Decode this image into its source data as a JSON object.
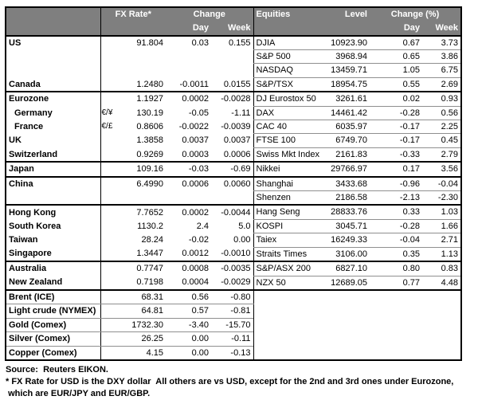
{
  "table": {
    "header": {
      "fx_rate": "FX Rate*",
      "change": "Change",
      "day": "Day",
      "week": "Week",
      "equities": "Equities",
      "level": "Level",
      "change_pct": "Change (%)",
      "day_right": "Day",
      "week_right": "Week"
    },
    "commodity_start_index": 18,
    "rows": [
      {
        "name": "US",
        "pair": "",
        "indent": false,
        "rate": "91.804",
        "day": "0.03",
        "week": "0.155",
        "equity": "DJIA",
        "level": "10923.90",
        "eq_day": "0.67",
        "eq_week": "3.73",
        "sep_after": false
      },
      {
        "name": "",
        "pair": "",
        "indent": false,
        "rate": "",
        "day": "",
        "week": "",
        "equity": "S&P 500",
        "level": "3968.94",
        "eq_day": "0.65",
        "eq_week": "3.86",
        "sep_after": false
      },
      {
        "name": "",
        "pair": "",
        "indent": false,
        "rate": "",
        "day": "",
        "week": "",
        "equity": "NASDAQ",
        "level": "13459.71",
        "eq_day": "1.05",
        "eq_week": "6.75",
        "sep_after": false
      },
      {
        "name": "Canada",
        "pair": "",
        "indent": false,
        "rate": "1.2480",
        "day": "-0.0011",
        "week": "0.0155",
        "equity": "S&P/TSX",
        "level": "18954.75",
        "eq_day": "0.55",
        "eq_week": "2.69",
        "sep_after": true
      },
      {
        "name": "Eurozone",
        "pair": "",
        "indent": false,
        "rate": "1.1927",
        "day": "0.0002",
        "week": "-0.0028",
        "equity": "DJ Eurostox 50",
        "level": "3261.61",
        "eq_day": "0.02",
        "eq_week": "0.93",
        "sep_after": false
      },
      {
        "name": "Germany",
        "pair": "€/¥",
        "indent": true,
        "rate": "130.19",
        "day": "-0.05",
        "week": "-1.11",
        "equity": "DAX",
        "level": "14461.42",
        "eq_day": "-0.28",
        "eq_week": "0.56",
        "sep_after": false
      },
      {
        "name": "France",
        "pair": "€/£",
        "indent": true,
        "rate": "0.8606",
        "day": "-0.0022",
        "week": "-0.0039",
        "equity": "CAC 40",
        "level": "6035.97",
        "eq_day": "-0.17",
        "eq_week": "2.25",
        "sep_after": false
      },
      {
        "name": "UK",
        "pair": "",
        "indent": false,
        "rate": "1.3858",
        "day": "0.0037",
        "week": "0.0037",
        "equity": "FTSE 100",
        "level": "6749.70",
        "eq_day": "-0.17",
        "eq_week": "0.45",
        "sep_after": false
      },
      {
        "name": "Switzerland",
        "pair": "",
        "indent": false,
        "rate": "0.9269",
        "day": "0.0003",
        "week": "0.0006",
        "equity": "Swiss Mkt Index",
        "level": "2161.83",
        "eq_day": "-0.33",
        "eq_week": "2.79",
        "sep_after": true
      },
      {
        "name": "Japan",
        "pair": "",
        "indent": false,
        "rate": "109.16",
        "day": "-0.03",
        "week": "-0.69",
        "equity": "Nikkei",
        "level": "29766.97",
        "eq_day": "0.17",
        "eq_week": "3.56",
        "sep_after": true
      },
      {
        "name": "China",
        "pair": "",
        "indent": false,
        "rate": "6.4990",
        "day": "0.0006",
        "week": "0.0060",
        "equity": "Shanghai",
        "level": "3433.68",
        "eq_day": "-0.96",
        "eq_week": "-0.04",
        "sep_after": false
      },
      {
        "name": "",
        "pair": "",
        "indent": false,
        "rate": "",
        "day": "",
        "week": "",
        "equity": "Shenzen",
        "level": "2186.58",
        "eq_day": "-2.13",
        "eq_week": "-2.30",
        "sep_after": true
      },
      {
        "name": "Hong Kong",
        "pair": "",
        "indent": false,
        "rate": "7.7652",
        "day": "0.0002",
        "week": "-0.0044",
        "equity": "Hang Seng",
        "level": "28833.76",
        "eq_day": "0.33",
        "eq_week": "1.03",
        "sep_after": false
      },
      {
        "name": "South Korea",
        "pair": "",
        "indent": false,
        "rate": "1130.2",
        "day": "2.4",
        "week": "5.0",
        "equity": "KOSPI",
        "level": "3045.71",
        "eq_day": "-0.28",
        "eq_week": "1.66",
        "sep_after": false
      },
      {
        "name": "Taiwan",
        "pair": "",
        "indent": false,
        "rate": "28.24",
        "day": "-0.02",
        "week": "0.00",
        "equity": "Taiex",
        "level": "16249.33",
        "eq_day": "-0.04",
        "eq_week": "2.71",
        "sep_after": false
      },
      {
        "name": "Singapore",
        "pair": "",
        "indent": false,
        "rate": "1.3447",
        "day": "0.0012",
        "week": "-0.0010",
        "equity": "Straits Times",
        "level": "3106.00",
        "eq_day": "0.35",
        "eq_week": "1.13",
        "sep_after": true
      },
      {
        "name": "Australia",
        "pair": "",
        "indent": false,
        "rate": "0.7747",
        "day": "0.0008",
        "week": "-0.0035",
        "equity": "S&P/ASX 200",
        "level": "6827.10",
        "eq_day": "0.80",
        "eq_week": "0.83",
        "sep_after": false
      },
      {
        "name": "New Zealand",
        "pair": "",
        "indent": false,
        "rate": "0.7198",
        "day": "0.0004",
        "week": "-0.0029",
        "equity": "NZX 50",
        "level": "12689.05",
        "eq_day": "0.77",
        "eq_week": "4.48",
        "sep_after": true
      },
      {
        "name": "Brent (ICE)",
        "pair": "",
        "indent": false,
        "rate": "68.31",
        "day": "0.56",
        "week": "-0.80",
        "equity": null,
        "level": null,
        "eq_day": null,
        "eq_week": null,
        "sep_after": false
      },
      {
        "name": "Light crude (NYMEX)",
        "pair": "",
        "indent": false,
        "rate": "64.81",
        "day": "0.57",
        "week": "-0.81",
        "equity": null,
        "level": null,
        "eq_day": null,
        "eq_week": null,
        "sep_after": false
      },
      {
        "name": "Gold (Comex)",
        "pair": "",
        "indent": false,
        "rate": "1732.30",
        "day": "-3.40",
        "week": "-15.70",
        "equity": null,
        "level": null,
        "eq_day": null,
        "eq_week": null,
        "sep_after": false
      },
      {
        "name": "Silver (Comex)",
        "pair": "",
        "indent": false,
        "rate": "26.25",
        "day": "0.00",
        "week": "-0.11",
        "equity": null,
        "level": null,
        "eq_day": null,
        "eq_week": null,
        "sep_after": false
      },
      {
        "name": "Copper (Comex)",
        "pair": "",
        "indent": false,
        "rate": "4.15",
        "day": "0.00",
        "week": "-0.13",
        "equity": null,
        "level": null,
        "eq_day": null,
        "eq_week": null,
        "sep_after": false
      }
    ]
  },
  "footer": {
    "source": "Source:  Reuters EIKON.",
    "note_line1": "* FX Rate for USD is the DXY dollar  All others are vs USD, except for the 2nd and 3rd ones under Eurozone,",
    "note_line2": " which are EUR/JPY and EUR/GBP."
  },
  "colors": {
    "header_bg": "#7f7f7f",
    "header_text": "#ffffff",
    "grid_line": "#8f8f8f",
    "border": "#000000"
  }
}
